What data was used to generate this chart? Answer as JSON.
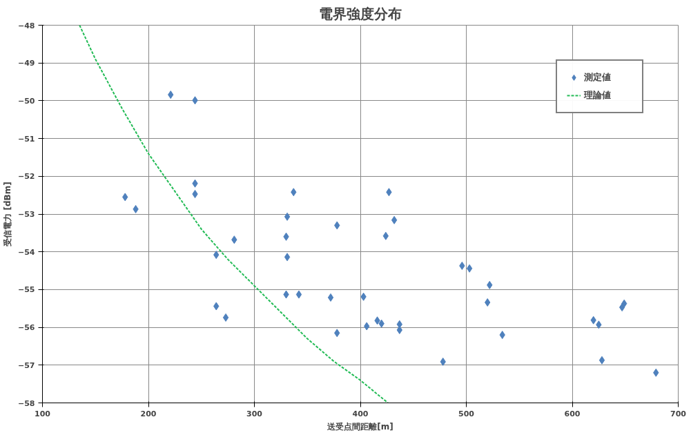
{
  "chart_data": {
    "type": "scatter",
    "title": "電界強度分布",
    "xlabel": "送受点間距離[m]",
    "ylabel": "受信電力 [dBm]",
    "xlim": [
      100,
      700
    ],
    "xticks": [
      100,
      200,
      300,
      400,
      500,
      600,
      700
    ],
    "ylim": [
      -58,
      -48
    ],
    "yticks": [
      -58,
      -57,
      -56,
      -55,
      -54,
      -53,
      -52,
      -51,
      -50,
      -49,
      -48
    ],
    "grid": true,
    "legend": "top right",
    "series": [
      {
        "name": "測定値",
        "marker": "diamond",
        "color": "#4f81bd",
        "x": [
          178,
          188,
          221,
          244,
          244,
          244,
          264,
          264,
          281,
          273,
          331,
          330,
          331,
          330,
          342,
          337,
          372,
          378,
          378,
          403,
          406,
          416,
          420,
          427,
          424,
          432,
          437,
          437,
          478,
          496,
          503,
          522,
          520,
          534,
          620,
          625,
          628,
          647,
          649,
          679
        ],
        "values": [
          -52.55,
          -52.87,
          -49.84,
          -49.99,
          -52.19,
          -52.47,
          -54.08,
          -55.44,
          -53.68,
          -55.74,
          -53.07,
          -53.6,
          -54.14,
          -55.13,
          -55.13,
          -52.42,
          -55.21,
          -53.3,
          -56.15,
          -55.19,
          -55.97,
          -55.82,
          -55.9,
          -52.42,
          -53.58,
          -53.16,
          -55.92,
          -56.07,
          -56.91,
          -54.37,
          -54.44,
          -54.88,
          -55.34,
          -56.2,
          -55.81,
          -55.93,
          -56.87,
          -55.47,
          -55.37,
          -57.2
        ]
      },
      {
        "name": "理論値",
        "type": "line",
        "line_style": "dashed",
        "color": "#22bb55",
        "x": [
          135,
          150,
          175,
          200,
          225,
          250,
          275,
          300,
          325,
          350,
          375,
          400,
          426
        ],
        "values": [
          -48,
          -48.9,
          -50.2,
          -51.4,
          -52.4,
          -53.4,
          -54.2,
          -54.9,
          -55.6,
          -56.3,
          -56.9,
          -57.4,
          -58
        ]
      }
    ]
  }
}
